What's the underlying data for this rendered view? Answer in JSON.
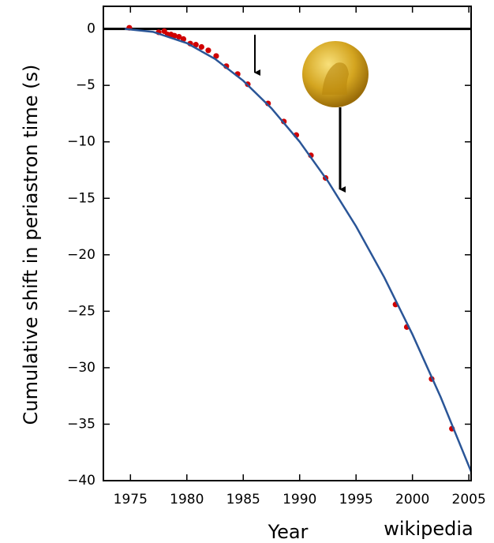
{
  "chart_data": {
    "type": "scatter",
    "x_label": "Year",
    "y_label": "Cumulative shift in periastron time (s)",
    "watermark": "wikipedia",
    "xlim": [
      1972.6,
      2005.2
    ],
    "ylim": [
      -40,
      2
    ],
    "xticks": [
      1975,
      1980,
      1985,
      1990,
      1995,
      2000,
      2005
    ],
    "yticks": [
      0,
      {
        "value": -5,
        "label": "−5"
      },
      {
        "value": -10,
        "label": "−10"
      },
      {
        "value": -15,
        "label": "−15"
      },
      {
        "value": -20,
        "label": "−20"
      },
      {
        "value": -25,
        "label": "−25"
      },
      {
        "value": -30,
        "label": "−30"
      },
      {
        "value": -35,
        "label": "−35"
      },
      {
        "value": -40,
        "label": "−40"
      }
    ],
    "reference_line": 0,
    "series": [
      {
        "kind": "points",
        "color": "#d00000",
        "x": [
          1974.9,
          1977.5,
          1978.0,
          1978.3,
          1978.6,
          1978.9,
          1979.3,
          1979.7,
          1980.3,
          1980.8,
          1981.3,
          1981.9,
          1982.6,
          1983.5,
          1984.5,
          1985.4,
          1987.2,
          1988.6,
          1989.7,
          1991.0,
          1992.3,
          1998.5,
          1999.5,
          2001.7,
          2003.5
        ],
        "values": [
          0.1,
          -0.3,
          -0.2,
          -0.5,
          -0.5,
          -0.6,
          -0.7,
          -0.9,
          -1.3,
          -1.4,
          -1.6,
          -1.9,
          -2.4,
          -3.3,
          -4.0,
          -4.9,
          -6.6,
          -8.2,
          -9.4,
          -11.2,
          -13.2,
          -24.4,
          -26.4,
          -31.0,
          -35.4
        ]
      },
      {
        "kind": "curve",
        "color": "#2a5597",
        "x": [
          1974.5,
          1977,
          1980,
          1982.5,
          1985,
          1987.5,
          1990,
          1992.5,
          1995,
          1997.5,
          2000,
          2002.5,
          2005.2
        ],
        "values": [
          0,
          -0.26,
          -1.26,
          -2.66,
          -4.59,
          -7.03,
          -9.99,
          -13.48,
          -17.48,
          -22.0,
          -27.05,
          -32.6,
          -39.2
        ]
      }
    ]
  }
}
